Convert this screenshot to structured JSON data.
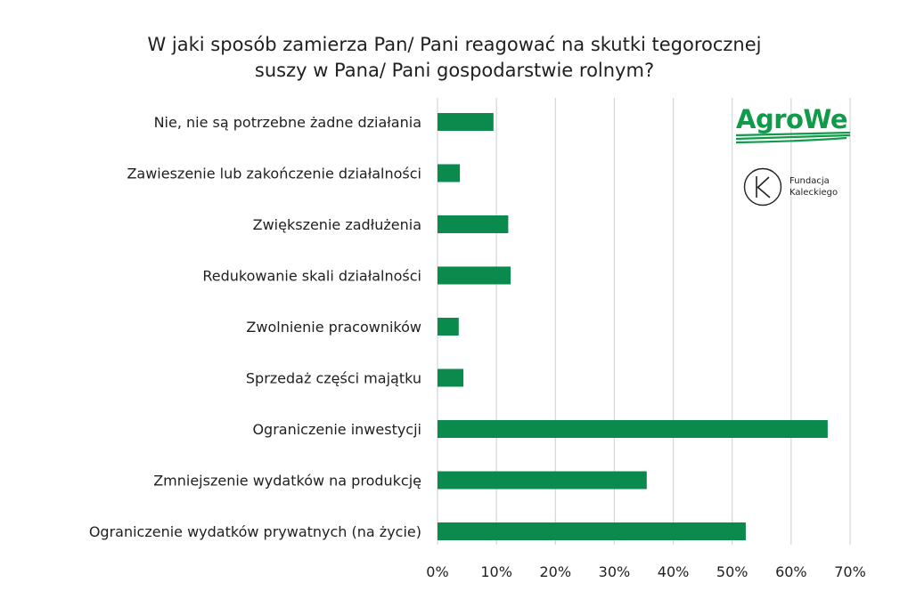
{
  "chart_data": {
    "type": "bar",
    "orientation": "horizontal",
    "title_lines": [
      "W jaki sposób zamierza Pan/ Pani reagować na skutki tegorocznej",
      "suszy w Pana/ Pani gospodarstwie rolnym?"
    ],
    "categories": [
      "Nie, nie są potrzebne żadne działania",
      "Zawieszenie lub zakończenie działalności",
      "Zwiększenie zadłużenia",
      "Redukowanie skali działalności",
      "Zwolnienie pracowników",
      "Sprzedaż części majątku",
      "Ograniczenie inwestycji",
      "Zmniejszenie wydatków na produkcję",
      "Ograniczenie wydatków prywatnych (na życie)"
    ],
    "values": [
      9.5,
      3.8,
      12.0,
      12.4,
      3.6,
      4.4,
      66.2,
      35.5,
      52.3
    ],
    "xlim": [
      0,
      70
    ],
    "x_ticks": [
      "0%",
      "10%",
      "20%",
      "30%",
      "40%",
      "50%",
      "60%",
      "70%"
    ],
    "grid": "vertical",
    "bar_color": "#0b8a4d",
    "grid_color": "#d6d6d6"
  },
  "logos": {
    "agrowe": {
      "text": "AgroWe",
      "color": "#109a4a"
    },
    "fundacja": {
      "line1": "Fundacja",
      "line2": "Kaleckiego"
    }
  }
}
